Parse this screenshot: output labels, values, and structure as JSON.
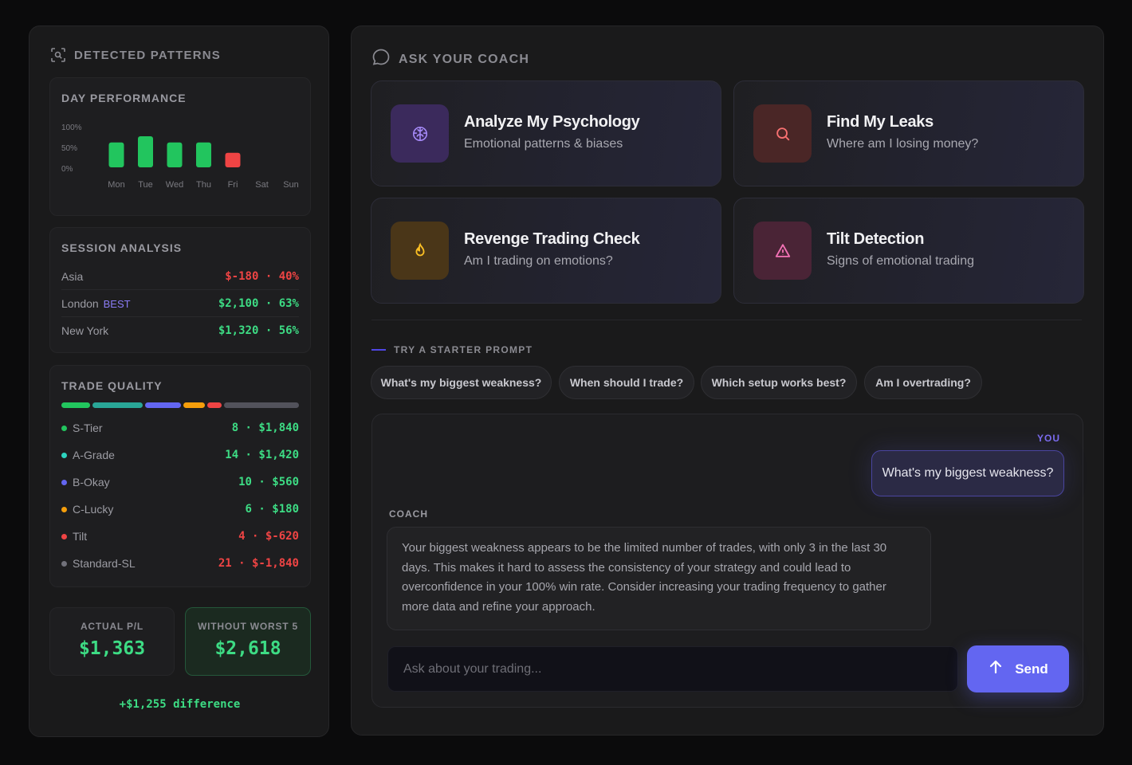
{
  "left_panel": {
    "title": "DETECTED PATTERNS",
    "icon": "scan-icon",
    "day_performance": {
      "title": "DAY PERFORMANCE",
      "y_labels": [
        "100%",
        "50%",
        "0%"
      ]
    },
    "session_analysis": {
      "title": "SESSION ANALYSIS",
      "rows": [
        {
          "name": "Asia",
          "tag": "",
          "pnl": "$-180",
          "win_rate": "40%",
          "color": "#ef4444"
        },
        {
          "name": "London",
          "tag": "BEST",
          "pnl": "$2,100",
          "win_rate": "63%",
          "color": "#3ddc84"
        },
        {
          "name": "New York",
          "tag": "",
          "pnl": "$1,320",
          "win_rate": "56%",
          "color": "#3ddc84"
        }
      ]
    },
    "trade_quality": {
      "title": "TRADE QUALITY",
      "rows": [
        {
          "name": "S-Tier",
          "count": "8",
          "pnl": "$1,840",
          "dot_color": "#22c55e",
          "value_color": "#3ddc84"
        },
        {
          "name": "A-Grade",
          "count": "14",
          "pnl": "$1,420",
          "dot_color": "#2dd4bf",
          "value_color": "#3ddc84"
        },
        {
          "name": "B-Okay",
          "count": "10",
          "pnl": "$560",
          "dot_color": "#6366f1",
          "value_color": "#3ddc84"
        },
        {
          "name": "C-Lucky",
          "count": "6",
          "pnl": "$180",
          "dot_color": "#f59e0b",
          "value_color": "#3ddc84"
        },
        {
          "name": "Tilt",
          "count": "4",
          "pnl": "$-620",
          "dot_color": "#ef4444",
          "value_color": "#ef4444"
        },
        {
          "name": "Standard-SL",
          "count": "21",
          "pnl": "$-1,840",
          "dot_color": "#71717a",
          "value_color": "#ef4444"
        }
      ]
    },
    "actual_pl": {
      "label": "ACTUAL P/L",
      "value": "$1,363"
    },
    "without_worst": {
      "label": "WITHOUT WORST 5",
      "value": "$2,618"
    },
    "difference": "+$1,255 difference"
  },
  "chart_data": {
    "type": "bar",
    "title": "DAY PERFORMANCE",
    "categories": [
      "Mon",
      "Tue",
      "Wed",
      "Thu",
      "Fri",
      "Sat",
      "Sun"
    ],
    "values": [
      60,
      75,
      60,
      60,
      35,
      0,
      0
    ],
    "colors": [
      "#22c55e",
      "#22c55e",
      "#22c55e",
      "#22c55e",
      "#ef4444",
      "",
      ""
    ],
    "ylim": [
      0,
      100
    ],
    "grid": false
  },
  "right_panel": {
    "title": "ASK YOUR COACH",
    "icon": "chat-bubble-icon",
    "actions": [
      {
        "title": "Analyze My Psychology",
        "subtitle": "Emotional patterns & biases",
        "icon": "brain-icon",
        "color": "#a78bfa",
        "bg": "#3b2a5c"
      },
      {
        "title": "Find My Leaks",
        "subtitle": "Where am I losing money?",
        "icon": "search-icon",
        "color": "#f87171",
        "bg": "#4a2626"
      },
      {
        "title": "Revenge Trading Check",
        "subtitle": "Am I trading on emotions?",
        "icon": "flame-icon",
        "color": "#fbbf24",
        "bg": "#4a3618"
      },
      {
        "title": "Tilt Detection",
        "subtitle": "Signs of emotional trading",
        "icon": "warning-icon",
        "color": "#f472b6",
        "bg": "#4a2436"
      }
    ],
    "starter_label": "TRY A STARTER PROMPT",
    "starter_prompts": [
      "What's my biggest weakness?",
      "When should I trade?",
      "Which setup works best?",
      "Am I overtrading?"
    ],
    "chat": {
      "you_label": "YOU",
      "user_message": "What's my biggest weakness?",
      "coach_label": "COACH",
      "coach_message": "Your biggest weakness appears to be the limited number of trades, with only 3 in the last 30 days. This makes it hard to assess the consistency of your strategy and could lead to overconfidence in your 100% win rate. Consider increasing your trading frequency to gather more data and refine your approach.",
      "input_placeholder": "Ask about your trading...",
      "send_label": "Send",
      "send_icon": "arrow-up-icon"
    }
  }
}
